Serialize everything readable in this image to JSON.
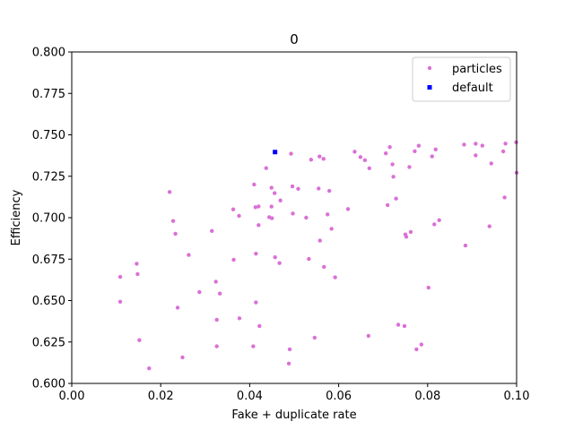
{
  "colors": {
    "particles": "#da70d6",
    "default": "#0000ff",
    "axis": "#000000",
    "legend_border": "#cccccc"
  },
  "chart_data": {
    "type": "scatter",
    "title": "0",
    "xlabel": "Fake + duplicate rate",
    "ylabel": "Efficiency",
    "xlim": [
      0.0,
      0.1
    ],
    "ylim": [
      0.6,
      0.8
    ],
    "xticks": [
      0.0,
      0.02,
      0.04,
      0.06,
      0.08,
      0.1
    ],
    "xtick_labels": [
      "0.00",
      "0.02",
      "0.04",
      "0.06",
      "0.08",
      "0.10"
    ],
    "yticks": [
      0.6,
      0.625,
      0.65,
      0.675,
      0.7,
      0.725,
      0.75,
      0.775,
      0.8
    ],
    "ytick_labels": [
      "0.600",
      "0.625",
      "0.650",
      "0.675",
      "0.700",
      "0.725",
      "0.750",
      "0.775",
      "0.800"
    ],
    "grid": false,
    "legend_position": "top-right",
    "series": [
      {
        "name": "particles",
        "marker": "circle",
        "color": "#da70d6",
        "points": [
          [
            0.0109,
            0.6643
          ],
          [
            0.0109,
            0.6493
          ],
          [
            0.0146,
            0.6722
          ],
          [
            0.0148,
            0.666
          ],
          [
            0.0152,
            0.6261
          ],
          [
            0.0174,
            0.6091
          ],
          [
            0.022,
            0.7155
          ],
          [
            0.0228,
            0.698
          ],
          [
            0.0233,
            0.6903
          ],
          [
            0.0238,
            0.6457
          ],
          [
            0.0249,
            0.6157
          ],
          [
            0.0263,
            0.6775
          ],
          [
            0.0287,
            0.6551
          ],
          [
            0.0315,
            0.692
          ],
          [
            0.0324,
            0.6614
          ],
          [
            0.0326,
            0.6384
          ],
          [
            0.0326,
            0.6224
          ],
          [
            0.0333,
            0.6542
          ],
          [
            0.0363,
            0.705
          ],
          [
            0.0364,
            0.6746
          ],
          [
            0.0376,
            0.7011
          ],
          [
            0.0377,
            0.6393
          ],
          [
            0.0408,
            0.6224
          ],
          [
            0.041,
            0.72
          ],
          [
            0.0413,
            0.7063
          ],
          [
            0.0414,
            0.6783
          ],
          [
            0.0414,
            0.6489
          ],
          [
            0.042,
            0.7068
          ],
          [
            0.042,
            0.6955
          ],
          [
            0.0422,
            0.6346
          ],
          [
            0.0437,
            0.7299
          ],
          [
            0.0444,
            0.7003
          ],
          [
            0.0449,
            0.7181
          ],
          [
            0.0449,
            0.7067
          ],
          [
            0.045,
            0.6997
          ],
          [
            0.0456,
            0.7148
          ],
          [
            0.0457,
            0.6761
          ],
          [
            0.0467,
            0.6726
          ],
          [
            0.0469,
            0.7104
          ],
          [
            0.0488,
            0.612
          ],
          [
            0.049,
            0.6206
          ],
          [
            0.0493,
            0.7386
          ],
          [
            0.0496,
            0.7189
          ],
          [
            0.0497,
            0.7025
          ],
          [
            0.0509,
            0.7174
          ],
          [
            0.0527,
            0.7
          ],
          [
            0.0533,
            0.6751
          ],
          [
            0.0538,
            0.735
          ],
          [
            0.0546,
            0.6276
          ],
          [
            0.0555,
            0.7176
          ],
          [
            0.0557,
            0.7369
          ],
          [
            0.0558,
            0.6862
          ],
          [
            0.0566,
            0.7355
          ],
          [
            0.0567,
            0.6703
          ],
          [
            0.0575,
            0.702
          ],
          [
            0.0579,
            0.7162
          ],
          [
            0.0584,
            0.6933
          ],
          [
            0.0592,
            0.664
          ],
          [
            0.0621,
            0.7052
          ],
          [
            0.0636,
            0.7398
          ],
          [
            0.0649,
            0.7366
          ],
          [
            0.0659,
            0.7347
          ],
          [
            0.0667,
            0.6287
          ],
          [
            0.0669,
            0.7298
          ],
          [
            0.0706,
            0.7388
          ],
          [
            0.071,
            0.7076
          ],
          [
            0.0715,
            0.7426
          ],
          [
            0.0721,
            0.7322
          ],
          [
            0.0723,
            0.7247
          ],
          [
            0.0729,
            0.7115
          ],
          [
            0.0734,
            0.6354
          ],
          [
            0.0748,
            0.6346
          ],
          [
            0.075,
            0.6899
          ],
          [
            0.0752,
            0.6885
          ],
          [
            0.0759,
            0.7306
          ],
          [
            0.0762,
            0.6914
          ],
          [
            0.0771,
            0.7401
          ],
          [
            0.0775,
            0.6206
          ],
          [
            0.078,
            0.7434
          ],
          [
            0.0786,
            0.6235
          ],
          [
            0.0802,
            0.6578
          ],
          [
            0.081,
            0.737
          ],
          [
            0.0815,
            0.696
          ],
          [
            0.0818,
            0.7412
          ],
          [
            0.0826,
            0.6985
          ],
          [
            0.0882,
            0.7441
          ],
          [
            0.0885,
            0.6832
          ],
          [
            0.0908,
            0.7446
          ],
          [
            0.0908,
            0.7376
          ],
          [
            0.0923,
            0.7435
          ],
          [
            0.0939,
            0.6948
          ],
          [
            0.0943,
            0.7327
          ],
          [
            0.097,
            0.74
          ],
          [
            0.0973,
            0.7122
          ],
          [
            0.0975,
            0.7447
          ],
          [
            0.0999,
            0.7455
          ],
          [
            0.1,
            0.7271
          ]
        ]
      },
      {
        "name": "default",
        "marker": "square",
        "color": "#0000ff",
        "points": [
          [
            0.0457,
            0.7396
          ]
        ]
      }
    ]
  }
}
